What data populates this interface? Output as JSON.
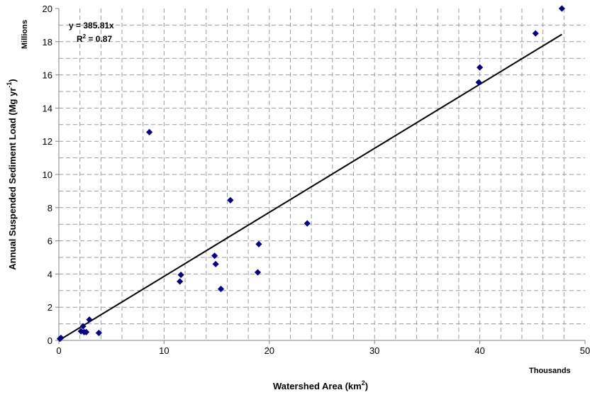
{
  "chart_data": {
    "type": "scatter",
    "title": "",
    "xlabel": "Watershed Area (km",
    "xlabel_sup": "2",
    "xlabel_end": ")",
    "ylabel": "Annual Suspended Sediment Load (Mg yr",
    "ylabel_sup": "-1",
    "ylabel_end": ")",
    "x_unit": "Thousands",
    "y_unit": "Millions",
    "xlim": [
      0,
      50
    ],
    "ylim": [
      0,
      20
    ],
    "x_ticks": [
      0,
      10,
      20,
      30,
      40,
      50
    ],
    "y_ticks": [
      0,
      2,
      4,
      6,
      8,
      10,
      12,
      14,
      16,
      18,
      20
    ],
    "grid": true,
    "marker_color": "#00008B",
    "trendline": {
      "equation": "y = 385.81x",
      "r2_label": "R",
      "r2_sup": "2",
      "r2_value": " = 0.87",
      "slope": 0.38581,
      "color": "#000000"
    },
    "x": [
      0.1,
      0.2,
      2.1,
      2.3,
      2.4,
      2.6,
      2.9,
      3.8,
      8.6,
      11.5,
      11.6,
      14.8,
      14.9,
      15.4,
      16.3,
      18.9,
      19.0,
      23.6,
      39.9,
      40.0,
      45.3,
      47.8
    ],
    "y": [
      0.1,
      0.15,
      0.55,
      0.85,
      0.5,
      0.5,
      1.25,
      0.45,
      12.55,
      3.55,
      3.95,
      5.1,
      4.6,
      3.1,
      8.45,
      4.1,
      5.8,
      7.05,
      15.55,
      16.45,
      18.5,
      20.0
    ]
  }
}
